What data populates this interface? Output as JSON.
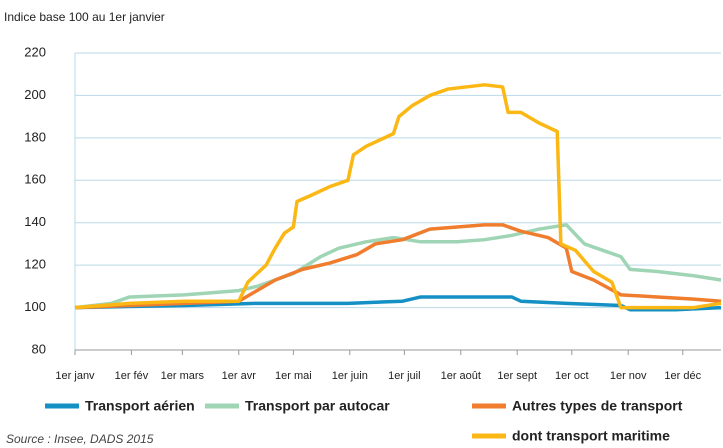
{
  "chart_data": {
    "type": "line",
    "y_label": "Indice base 100 au 1er janvier",
    "source": "Source : Insee, DADS 2015",
    "xlim": [
      0,
      355
    ],
    "xticks": [
      {
        "value": 0,
        "label": "1er janv"
      },
      {
        "value": 31,
        "label": "1er fév"
      },
      {
        "value": 59,
        "label": "1er mars"
      },
      {
        "value": 90,
        "label": "1er avr"
      },
      {
        "value": 120,
        "label": "1er mai"
      },
      {
        "value": 151,
        "label": "1er juin"
      },
      {
        "value": 181,
        "label": "1er juil"
      },
      {
        "value": 212,
        "label": "1er août"
      },
      {
        "value": 243,
        "label": "1er sept"
      },
      {
        "value": 273,
        "label": "1er oct"
      },
      {
        "value": 304,
        "label": "1er nov"
      },
      {
        "value": 334,
        "label": "1er déc"
      }
    ],
    "ylim": [
      80,
      220
    ],
    "yticks": [
      80,
      100,
      120,
      140,
      160,
      180,
      200,
      220
    ],
    "grid": true,
    "series": [
      {
        "name": "Transport aérien",
        "color": "#1590c4",
        "x": [
          0,
          60,
          100,
          150,
          180,
          190,
          210,
          240,
          245,
          270,
          300,
          305,
          330,
          355
        ],
        "values": [
          100,
          101,
          102,
          102,
          103,
          105,
          105,
          105,
          103,
          102,
          101,
          99,
          99,
          100
        ]
      },
      {
        "name": "Transport par autocar",
        "color": "#9fd5b5",
        "x": [
          0,
          20,
          30,
          60,
          90,
          100,
          110,
          120,
          135,
          145,
          160,
          175,
          190,
          210,
          225,
          240,
          255,
          270,
          280,
          290,
          300,
          305,
          320,
          340,
          355
        ],
        "values": [
          100,
          102,
          105,
          106,
          108,
          110,
          113,
          116,
          124,
          128,
          131,
          133,
          131,
          131,
          132,
          134,
          137,
          139,
          130,
          127,
          124,
          118,
          117,
          115,
          113
        ]
      },
      {
        "name": "Autres types de transport",
        "color": "#ef7d2d",
        "x": [
          0,
          30,
          60,
          90,
          100,
          110,
          125,
          140,
          155,
          165,
          180,
          195,
          210,
          225,
          235,
          245,
          260,
          270,
          273,
          285,
          300,
          320,
          340,
          355
        ],
        "values": [
          100,
          101,
          102,
          103,
          108,
          113,
          118,
          121,
          125,
          130,
          132,
          137,
          138,
          139,
          139,
          136,
          133,
          128,
          117,
          113,
          106,
          105,
          104,
          103
        ]
      },
      {
        "name": "dont transport maritime",
        "color": "#fbb714",
        "x": [
          0,
          30,
          60,
          90,
          95,
          105,
          110,
          115,
          120,
          122,
          130,
          140,
          150,
          153,
          160,
          170,
          175,
          178,
          185,
          195,
          205,
          215,
          225,
          235,
          238,
          245,
          255,
          265,
          267,
          275,
          285,
          295,
          300,
          320,
          340,
          355
        ],
        "values": [
          100,
          102,
          103,
          103,
          112,
          120,
          128,
          135,
          138,
          150,
          153,
          157,
          160,
          172,
          176,
          180,
          182,
          190,
          195,
          200,
          203,
          204,
          205,
          204,
          192,
          192,
          187,
          183,
          130,
          127,
          117,
          112,
          100,
          100,
          100,
          102
        ]
      }
    ]
  }
}
